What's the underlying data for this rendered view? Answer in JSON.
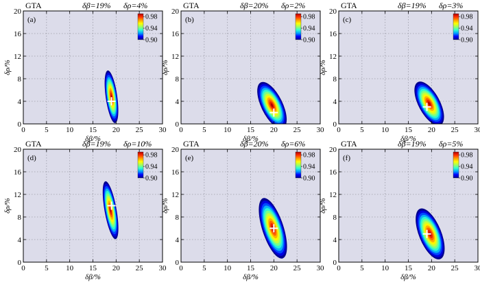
{
  "figure": {
    "colorscale": [
      "#00008f",
      "#0000ff",
      "#00a0ff",
      "#30ffd0",
      "#a0ff60",
      "#ffff00",
      "#ffa000",
      "#ff3000",
      "#b00000"
    ],
    "panel_bg": "#dcdcea",
    "grid_color": "#9a9aa6",
    "marker_color": "#ffffff"
  },
  "chart_data": [
    {
      "type": "heatmap",
      "panel": "a",
      "label": "(a)",
      "header": {
        "algo": "GTA",
        "db": "δβ=19%",
        "dr": "δρ=4%"
      },
      "xlabel": "δβ/%",
      "ylabel": "δρ/%",
      "xlim": [
        0,
        30
      ],
      "ylim": [
        0,
        20
      ],
      "xticks": [
        "0",
        "5",
        "10",
        "15",
        "20",
        "25",
        "30"
      ],
      "yticks": [
        "0",
        "4",
        "8",
        "12",
        "16",
        "20"
      ],
      "true_point": {
        "x": 19,
        "y": 4
      },
      "region": {
        "cx": 19,
        "cy": 4.8,
        "a": 4.7,
        "b": 1.25,
        "tilt": 8
      },
      "colorbar": {
        "ticks": [
          "0.98",
          "0.94",
          "0.90"
        ],
        "range": [
          0.9,
          0.99
        ]
      }
    },
    {
      "type": "heatmap",
      "panel": "b",
      "label": "(b)",
      "header": {
        "algo": "GTA",
        "db": "δβ=20%",
        "dr": "δρ=2%"
      },
      "xlabel": "δβ/%",
      "ylabel": "δρ/%",
      "xlim": [
        0,
        30
      ],
      "ylim": [
        0,
        20
      ],
      "xticks": [
        "0",
        "5",
        "10",
        "15",
        "20",
        "25",
        "30"
      ],
      "yticks": [
        "0",
        "4",
        "8",
        "12",
        "16",
        "20"
      ],
      "true_point": {
        "x": 20,
        "y": 2
      },
      "region": {
        "cx": 19.6,
        "cy": 3.3,
        "a": 4.5,
        "b": 2.3,
        "tilt": 26
      },
      "colorbar": {
        "ticks": [
          "0.98",
          "0.94",
          "0.90"
        ],
        "range": [
          0.9,
          0.99
        ]
      }
    },
    {
      "type": "heatmap",
      "panel": "c",
      "label": "(c)",
      "header": {
        "algo": "GTA",
        "db": "δβ=19%",
        "dr": "δρ=3%"
      },
      "xlabel": "δβ/%",
      "ylabel": "δρ/%",
      "xlim": [
        0,
        30
      ],
      "ylim": [
        0,
        20
      ],
      "xticks": [
        "0",
        "5",
        "10",
        "15",
        "20",
        "25",
        "30"
      ],
      "yticks": [
        "0",
        "4",
        "8",
        "12",
        "16",
        "20"
      ],
      "true_point": {
        "x": 19,
        "y": 3
      },
      "region": {
        "cx": 19.5,
        "cy": 3.6,
        "a": 4.3,
        "b": 2.3,
        "tilt": 28
      },
      "colorbar": {
        "ticks": [
          "0.98",
          "0.94",
          "0.90"
        ],
        "range": [
          0.9,
          0.99
        ]
      }
    },
    {
      "type": "heatmap",
      "panel": "d",
      "label": "(d)",
      "header": {
        "algo": "GTA",
        "db": "δβ=19%",
        "dr": "δρ=10%"
      },
      "xlabel": "δβ/%",
      "ylabel": "δρ/%",
      "xlim": [
        0,
        30
      ],
      "ylim": [
        0,
        20
      ],
      "xticks": [
        "0",
        "5",
        "10",
        "15",
        "20",
        "25",
        "30"
      ],
      "yticks": [
        "0",
        "4",
        "8",
        "12",
        "16",
        "20"
      ],
      "true_point": {
        "x": 19,
        "y": 10
      },
      "region": {
        "cx": 18.8,
        "cy": 9.2,
        "a": 5.2,
        "b": 1.3,
        "tilt": 10
      },
      "colorbar": {
        "ticks": [
          "0.98",
          "0.94",
          "0.90"
        ],
        "range": [
          0.9,
          0.99
        ]
      }
    },
    {
      "type": "heatmap",
      "panel": "e",
      "label": "(e)",
      "header": {
        "algo": "GTA",
        "db": "δβ=20%",
        "dr": "δρ=6%"
      },
      "xlabel": "δβ/%",
      "ylabel": "δρ/%",
      "xlim": [
        0,
        30
      ],
      "ylim": [
        0,
        20
      ],
      "xticks": [
        "0",
        "5",
        "10",
        "15",
        "20",
        "25",
        "30"
      ],
      "yticks": [
        "0",
        "4",
        "8",
        "12",
        "16",
        "20"
      ],
      "true_point": {
        "x": 20,
        "y": 6
      },
      "region": {
        "cx": 19.8,
        "cy": 6.0,
        "a": 5.6,
        "b": 2.3,
        "tilt": 18
      },
      "colorbar": {
        "ticks": [
          "0.98",
          "0.94",
          "0.90"
        ],
        "range": [
          0.9,
          0.99
        ]
      }
    },
    {
      "type": "heatmap",
      "panel": "f",
      "label": "(f)",
      "header": {
        "algo": "GTA",
        "db": "δβ=19%",
        "dr": "δρ=5%"
      },
      "xlabel": "δβ/%",
      "ylabel": "δρ/%",
      "xlim": [
        0,
        30
      ],
      "ylim": [
        0,
        20
      ],
      "xticks": [
        "0",
        "5",
        "10",
        "15",
        "20",
        "25",
        "30"
      ],
      "yticks": [
        "0",
        "4",
        "8",
        "12",
        "16",
        "20"
      ],
      "true_point": {
        "x": 19,
        "y": 5
      },
      "region": {
        "cx": 19.7,
        "cy": 5.0,
        "a": 4.8,
        "b": 2.4,
        "tilt": 22
      },
      "colorbar": {
        "ticks": [
          "0.98",
          "0.94",
          "0.90"
        ],
        "range": [
          0.9,
          0.99
        ]
      }
    }
  ]
}
